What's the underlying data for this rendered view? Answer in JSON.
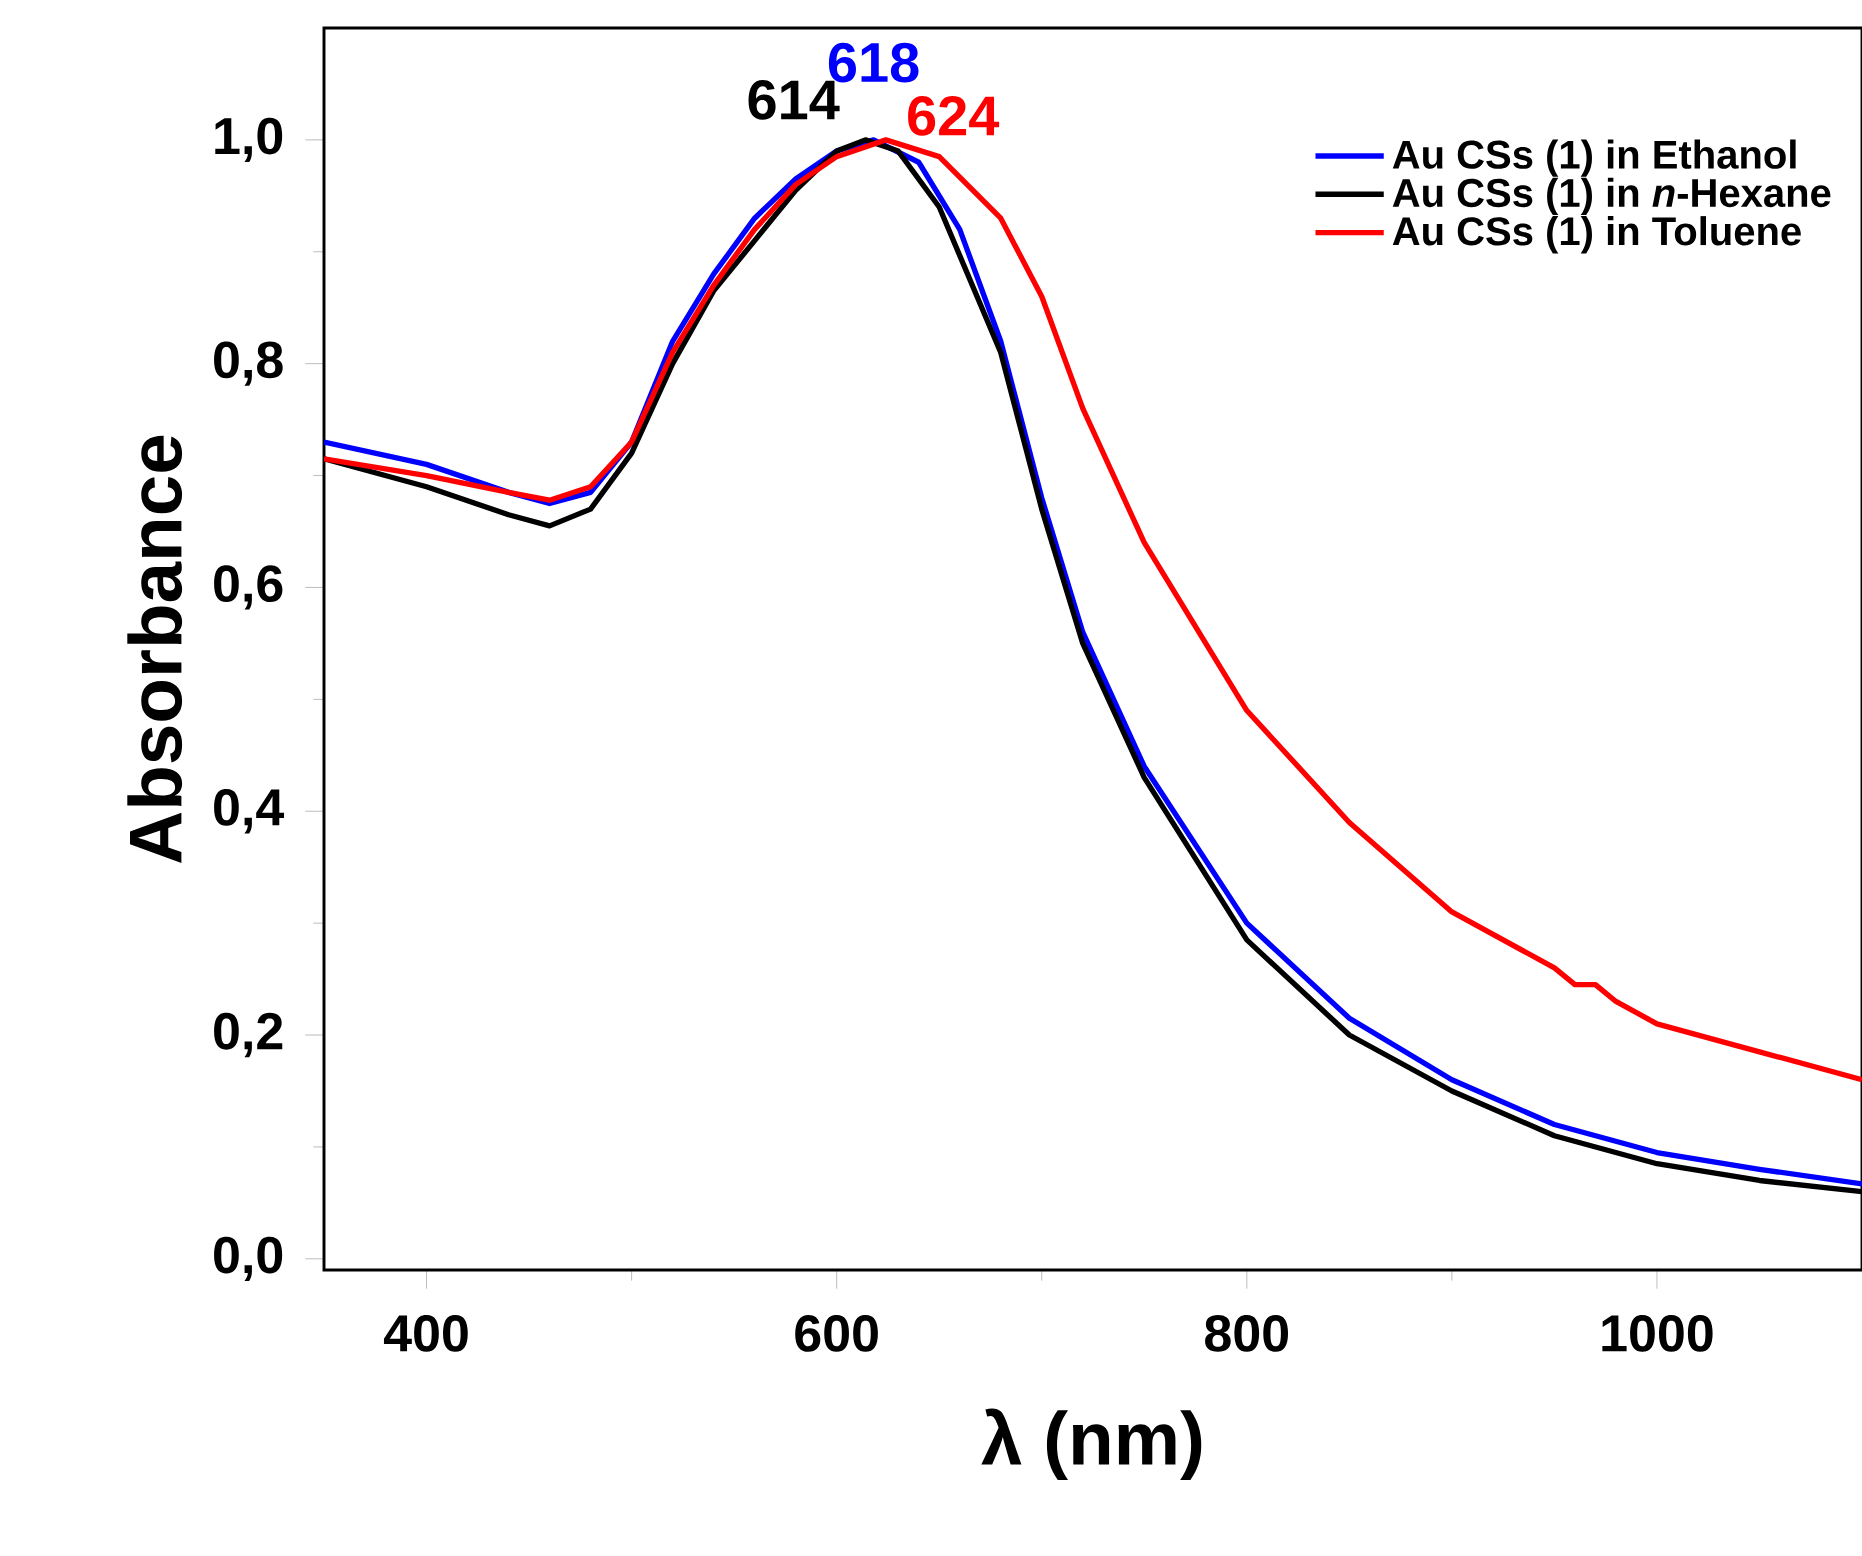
{
  "chart_data": {
    "type": "line",
    "xlabel": "λ (nm)",
    "ylabel": "Absorbance",
    "xlim": [
      350,
      1100
    ],
    "ylim": [
      -0.01,
      1.1
    ],
    "xticks": [
      400,
      600,
      800,
      1000
    ],
    "yticks": [
      {
        "value": 0,
        "label": "0,0"
      },
      {
        "value": 0.2,
        "label": "0,2"
      },
      {
        "value": 0.4,
        "label": "0,4"
      },
      {
        "value": 0.6,
        "label": "0,6"
      },
      {
        "value": 0.8,
        "label": "0,8"
      },
      {
        "value": 1.0,
        "label": "1,0"
      }
    ],
    "grid": false,
    "legend": "top right",
    "marker": "none",
    "line_style": "solid",
    "annotations": [
      {
        "text": "614",
        "x": 614,
        "y": 1.0
      },
      {
        "text": "618",
        "x": 618,
        "y": 1.0
      },
      {
        "text": "624",
        "x": 624,
        "y": 1.0
      }
    ],
    "series": [
      {
        "name": "Au CSs (1) in Ethanol",
        "color": "#0000ff",
        "x": [
          350,
          400,
          440,
          460,
          480,
          500,
          520,
          540,
          560,
          580,
          600,
          618,
          640,
          660,
          680,
          700,
          720,
          750,
          800,
          850,
          900,
          950,
          1000,
          1050,
          1100
        ],
        "values": [
          0.73,
          0.71,
          0.685,
          0.675,
          0.685,
          0.73,
          0.82,
          0.88,
          0.93,
          0.965,
          0.99,
          1.0,
          0.98,
          0.92,
          0.82,
          0.68,
          0.56,
          0.44,
          0.3,
          0.215,
          0.16,
          0.12,
          0.095,
          0.08,
          0.067
        ]
      },
      {
        "name": "Au CSs (1) in *n*-Hexane",
        "color": "#000000",
        "x": [
          350,
          400,
          440,
          460,
          480,
          500,
          520,
          540,
          560,
          580,
          600,
          614,
          630,
          650,
          680,
          700,
          720,
          750,
          800,
          850,
          900,
          950,
          1000,
          1050,
          1100
        ],
        "values": [
          0.715,
          0.69,
          0.665,
          0.655,
          0.67,
          0.72,
          0.8,
          0.865,
          0.91,
          0.955,
          0.99,
          1.0,
          0.99,
          0.94,
          0.81,
          0.67,
          0.55,
          0.43,
          0.285,
          0.2,
          0.15,
          0.11,
          0.085,
          0.07,
          0.06
        ]
      },
      {
        "name": "Au CSs (1) in Toluene",
        "color": "#ff0000",
        "x": [
          350,
          400,
          440,
          460,
          480,
          500,
          520,
          540,
          560,
          580,
          600,
          624,
          650,
          680,
          700,
          720,
          750,
          800,
          850,
          900,
          950,
          960,
          970,
          980,
          1000,
          1050,
          1100
        ],
        "values": [
          0.715,
          0.7,
          0.685,
          0.678,
          0.69,
          0.73,
          0.81,
          0.87,
          0.92,
          0.96,
          0.985,
          1.0,
          0.985,
          0.93,
          0.86,
          0.76,
          0.64,
          0.49,
          0.39,
          0.31,
          0.26,
          0.245,
          0.245,
          0.23,
          0.21,
          0.185,
          0.16
        ]
      }
    ]
  }
}
